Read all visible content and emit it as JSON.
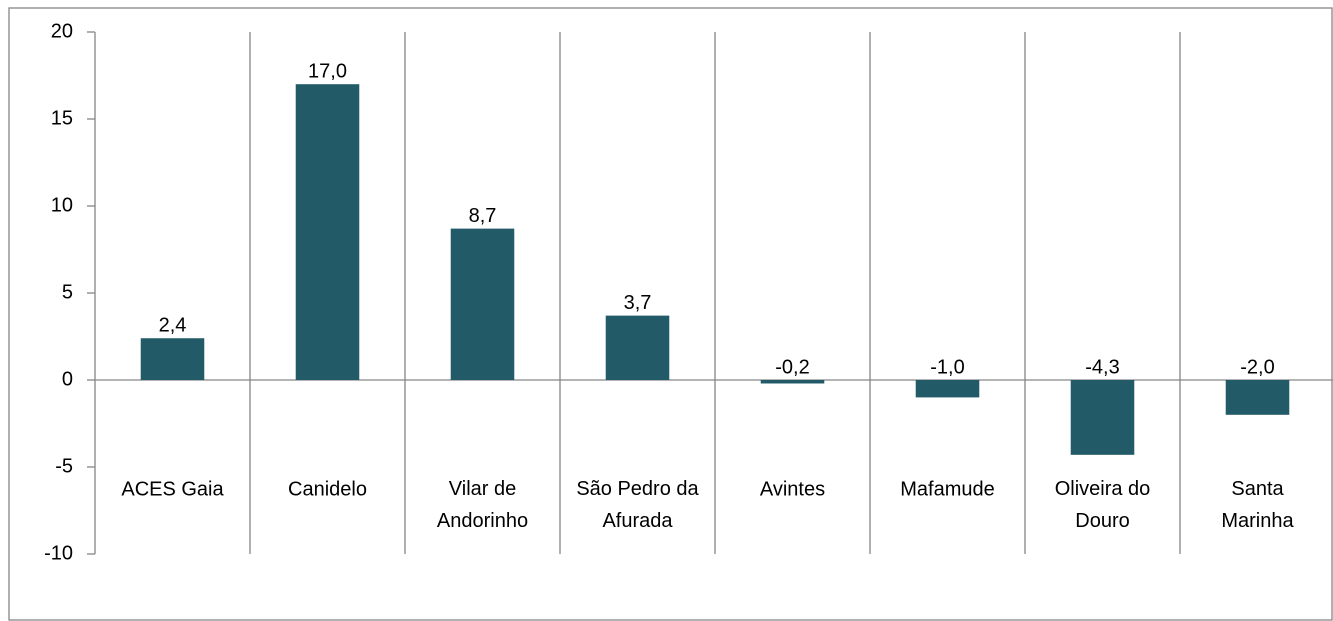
{
  "chart_data": {
    "type": "bar",
    "categories": [
      "ACES Gaia",
      "Canidelo",
      "Vilar de Andorinho",
      "São Pedro da Afurada",
      "Avintes",
      "Mafamude",
      "Oliveira do Douro",
      "Santa Marinha"
    ],
    "values": [
      2.4,
      17,
      8.7,
      3.7,
      -0.2,
      -1,
      -4.3,
      -2
    ],
    "value_labels": [
      "2,4",
      "17,0",
      "8,7",
      "3,7",
      "-0,2",
      "-1,0",
      "-4,3",
      "-2,0"
    ],
    "color": "#225a68",
    "ylim": [
      -10,
      20
    ],
    "yticks": [
      -10,
      -5,
      0,
      5,
      10,
      15,
      20
    ],
    "grid": false
  }
}
